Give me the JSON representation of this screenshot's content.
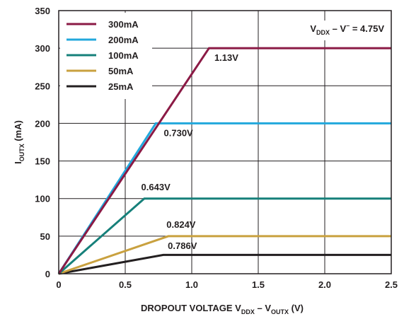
{
  "chart_data": {
    "type": "line",
    "title": "",
    "xlabel": {
      "main": "DROPOUT VOLTAGE V",
      "sub1": "DDX",
      "mid": " – V",
      "sub2": "OUTX",
      "tail": " (V)"
    },
    "ylabel": {
      "main": "I",
      "sub": "OUTX",
      "tail": " (mA)"
    },
    "xlim": [
      0,
      2.5
    ],
    "ylim": [
      0,
      350
    ],
    "x_ticks": [
      "0",
      "0.5",
      "1.0",
      "1.5",
      "2.0",
      "2.5"
    ],
    "y_ticks": [
      "0",
      "50",
      "100",
      "150",
      "200",
      "250",
      "300",
      "350"
    ],
    "grid": true,
    "legend_position": "top-left",
    "condition_label": {
      "main": "V",
      "sub": "DDX",
      "mid": " – V",
      "sup": "–",
      "tail": " = 4.75V"
    },
    "series": [
      {
        "name": "300mA",
        "color": "#8b1a45",
        "points": [
          [
            0,
            0
          ],
          [
            1.13,
            300
          ],
          [
            2.5,
            300
          ]
        ]
      },
      {
        "name": "200mA",
        "color": "#22a8dc",
        "points": [
          [
            0,
            0
          ],
          [
            0.73,
            200
          ],
          [
            2.5,
            200
          ]
        ]
      },
      {
        "name": "100mA",
        "color": "#16807a",
        "points": [
          [
            0,
            0
          ],
          [
            0.643,
            100
          ],
          [
            2.5,
            100
          ]
        ]
      },
      {
        "name": "50mA",
        "color": "#c9a13f",
        "points": [
          [
            0,
            0
          ],
          [
            0.824,
            50
          ],
          [
            2.5,
            50
          ]
        ]
      },
      {
        "name": "25mA",
        "color": "#231f20",
        "points": [
          [
            0,
            0
          ],
          [
            0.786,
            25
          ],
          [
            2.5,
            25
          ]
        ]
      }
    ],
    "annotations": [
      {
        "text": "1.13V",
        "x": 1.17,
        "y": 283
      },
      {
        "text": "0.730V",
        "x": 0.79,
        "y": 183
      },
      {
        "text": "0.643V",
        "x": 0.62,
        "y": 111
      },
      {
        "text": "0.824V",
        "x": 0.81,
        "y": 61
      },
      {
        "text": "0.786V",
        "x": 0.82,
        "y": 33
      }
    ]
  }
}
